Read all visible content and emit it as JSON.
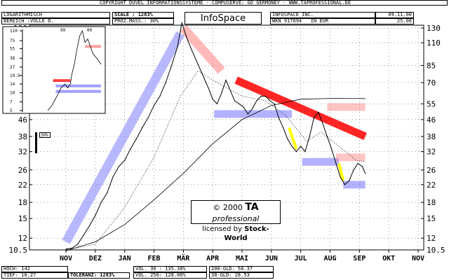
{
  "header": {
    "copyright": "COPYRIGHT DÜVEL INFORMATIONSSYSTEME - COMPUSERVE: GO GERMONEY - WWW.TAPROFESSIONAL.DE",
    "scale_type": "LOGARITHMISCH",
    "range": "BEREICH :VOLLE D.",
    "scale": "SCALE : 1283%",
    "prozmass": "PROZ.MASS.: 30%",
    "brand": "InfoSpace",
    "company": "INFOSPACE INC.",
    "wkn": "WKN 917694   IN EUR",
    "date": "09.11.00",
    "price": "25.00"
  },
  "footer": {
    "hoch": "HOCH: 142",
    "tief": "TIEF: 10.27",
    "toleranz": "TOLERANZ: 1283%",
    "vol30": "VOL. 30 : 135.38%",
    "vol250": "VOL. 250: 128.06%",
    "gld200": "200-GLD: 58.37",
    "gld38": "38-GLD: 28.53"
  },
  "copyright_box": {
    "line1": "© 2000",
    "brand_ta": "TA",
    "brand_pro": "professional",
    "line2": "licensed by",
    "line2b": "Stock-World"
  },
  "percent_marker": "30%",
  "chart_data": {
    "type": "line",
    "scale": "log",
    "ylim": [
      10.5,
      130
    ],
    "yticks": [
      10.5,
      12,
      15,
      18,
      22,
      26,
      32,
      38,
      46,
      55,
      70,
      85,
      110,
      130
    ],
    "x_months": [
      "NOV",
      "DEZ",
      "JAN",
      "FEB",
      "MÄR",
      "APR",
      "MAI",
      "JUN",
      "JUL",
      "AUG",
      "SEP",
      "OKT",
      "NOV"
    ],
    "series": [
      {
        "type": "price",
        "color": "#000000",
        "points": [
          [
            0,
            10.6
          ],
          [
            0.2,
            10.7
          ],
          [
            0.4,
            11.2
          ],
          [
            0.6,
            12.4
          ],
          [
            0.8,
            13.8
          ],
          [
            1,
            15.5
          ],
          [
            1.2,
            18
          ],
          [
            1.4,
            20
          ],
          [
            1.6,
            24
          ],
          [
            1.8,
            27
          ],
          [
            2,
            29
          ],
          [
            2.2,
            33
          ],
          [
            2.4,
            37
          ],
          [
            2.6,
            42
          ],
          [
            2.8,
            47
          ],
          [
            3,
            54
          ],
          [
            3.2,
            60
          ],
          [
            3.4,
            70
          ],
          [
            3.6,
            85
          ],
          [
            3.8,
            105
          ],
          [
            3.95,
            138
          ],
          [
            4.1,
            118
          ],
          [
            4.3,
            100
          ],
          [
            4.5,
            86
          ],
          [
            4.7,
            74
          ],
          [
            4.85,
            66
          ],
          [
            5,
            58
          ],
          [
            5.15,
            55
          ],
          [
            5.3,
            62
          ],
          [
            5.45,
            72
          ],
          [
            5.6,
            64
          ],
          [
            5.75,
            57
          ],
          [
            5.9,
            55
          ],
          [
            6.05,
            53
          ],
          [
            6.2,
            49
          ],
          [
            6.35,
            52
          ],
          [
            6.5,
            57
          ],
          [
            6.65,
            60
          ],
          [
            6.8,
            60
          ],
          [
            6.95,
            57
          ],
          [
            7.1,
            55
          ],
          [
            7.25,
            47
          ],
          [
            7.4,
            42
          ],
          [
            7.55,
            37
          ],
          [
            7.7,
            34
          ],
          [
            7.85,
            32
          ],
          [
            8,
            34
          ],
          [
            8.15,
            32
          ],
          [
            8.3,
            38
          ],
          [
            8.45,
            47
          ],
          [
            8.6,
            50
          ],
          [
            8.75,
            44
          ],
          [
            8.9,
            38
          ],
          [
            9.05,
            33
          ],
          [
            9.2,
            28
          ],
          [
            9.35,
            24
          ],
          [
            9.5,
            22
          ],
          [
            9.65,
            23
          ],
          [
            9.8,
            26
          ],
          [
            9.95,
            28
          ],
          [
            10.1,
            27
          ],
          [
            10.2,
            25
          ]
        ]
      },
      {
        "type": "38-day average",
        "color": "#000000",
        "style": "dotted",
        "points": [
          [
            0,
            10.5
          ],
          [
            1,
            11.2
          ],
          [
            2,
            17
          ],
          [
            3,
            30
          ],
          [
            3.9,
            60
          ],
          [
            4.5,
            80
          ],
          [
            5,
            72
          ],
          [
            6,
            60
          ],
          [
            6.8,
            57
          ],
          [
            7.5,
            48
          ],
          [
            8.2,
            36
          ],
          [
            8.7,
            40
          ],
          [
            9.3,
            34
          ],
          [
            9.9,
            29
          ],
          [
            10.2,
            28.5
          ]
        ]
      },
      {
        "type": "200-day average",
        "color": "#000000",
        "points": [
          [
            0,
            10.4
          ],
          [
            1,
            11.5
          ],
          [
            2,
            14
          ],
          [
            3,
            18.5
          ],
          [
            4,
            25
          ],
          [
            5,
            35
          ],
          [
            6,
            46
          ],
          [
            7,
            54
          ],
          [
            8,
            58
          ],
          [
            9,
            58.5
          ],
          [
            10.2,
            58.4
          ]
        ]
      }
    ],
    "trend_channels": [
      {
        "color": "#7f7fff",
        "from": [
          0,
          11.5
        ],
        "to": [
          3.9,
          122
        ]
      },
      {
        "color": "#ff8080",
        "from": [
          4,
          130
        ],
        "to": [
          5.3,
          80
        ]
      },
      {
        "color": "#ff0000",
        "from": [
          5.8,
          72
        ],
        "to": [
          10.2,
          38
        ]
      }
    ],
    "support_zones": [
      {
        "color": "#7f7fff",
        "from": 5.05,
        "to": 7.7,
        "y": 49
      },
      {
        "color": "#7f7fff",
        "from": 8.05,
        "to": 9.3,
        "y": 28.5
      },
      {
        "color": "#7f7fff",
        "from": 9.45,
        "to": 10.2,
        "y": 22
      }
    ],
    "resistance_zones": [
      {
        "color": "#ff8080",
        "from": 8.9,
        "to": 10.2,
        "y": 53
      },
      {
        "color": "#ff8080",
        "from": 9.2,
        "to": 10.2,
        "y": 30
      }
    ],
    "highlights": [
      {
        "color": "#ffff00",
        "from": [
          7.6,
          42
        ],
        "to": [
          7.85,
          33
        ]
      },
      {
        "color": "#ffff00",
        "from": [
          9.3,
          28
        ],
        "to": [
          9.45,
          23
        ]
      }
    ],
    "inset": {
      "type": "line",
      "scale": "log",
      "labels_top": [
        "99",
        "00"
      ],
      "yticks": [
        5,
        7,
        10,
        14,
        19.5,
        27,
        38,
        55,
        75,
        110
      ],
      "points": [
        [
          0,
          5
        ],
        [
          0.15,
          6
        ],
        [
          0.3,
          8
        ],
        [
          0.5,
          12
        ],
        [
          0.65,
          14
        ],
        [
          0.75,
          12
        ],
        [
          0.85,
          14
        ],
        [
          0.9,
          20
        ],
        [
          1,
          30
        ],
        [
          1.1,
          55
        ],
        [
          1.2,
          90
        ],
        [
          1.3,
          110
        ],
        [
          1.4,
          70
        ],
        [
          1.5,
          80
        ],
        [
          1.6,
          60
        ],
        [
          1.7,
          45
        ],
        [
          1.8,
          40
        ],
        [
          1.9,
          35
        ],
        [
          2.0,
          30
        ]
      ],
      "bands": [
        {
          "color": "#ff0000",
          "from": [
            0.2,
            16
          ],
          "to": [
            0.85,
            16
          ]
        },
        {
          "color": "#7f7fff",
          "from": [
            0.3,
            13
          ],
          "to": [
            2.0,
            13
          ]
        },
        {
          "color": "#7f7fff",
          "from": [
            0.3,
            10.5
          ],
          "to": [
            2.0,
            10.5
          ]
        },
        {
          "color": "#ff8080",
          "from": [
            1.4,
            60
          ],
          "to": [
            2.0,
            60
          ]
        }
      ]
    }
  }
}
